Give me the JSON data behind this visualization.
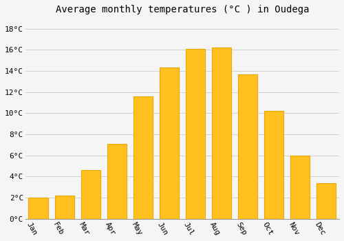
{
  "title": "Average monthly temperatures (°C ) in Oudega",
  "months": [
    "Jan",
    "Feb",
    "Mar",
    "Apr",
    "May",
    "Jun",
    "Jul",
    "Aug",
    "Sep",
    "Oct",
    "Nov",
    "Dec"
  ],
  "temperatures": [
    2.0,
    2.2,
    4.6,
    7.1,
    11.6,
    14.3,
    16.1,
    16.2,
    13.7,
    10.2,
    6.0,
    3.4
  ],
  "bar_color_main": "#FFC020",
  "bar_color_edge": "#E8A800",
  "background_color": "#F5F5F5",
  "grid_color": "#CCCCCC",
  "ytick_labels": [
    "0°C",
    "2°C",
    "4°C",
    "6°C",
    "8°C",
    "10°C",
    "12°C",
    "14°C",
    "16°C",
    "18°C"
  ],
  "ytick_values": [
    0,
    2,
    4,
    6,
    8,
    10,
    12,
    14,
    16,
    18
  ],
  "ylim": [
    0,
    19.0
  ],
  "title_fontsize": 10,
  "tick_fontsize": 8,
  "bar_width": 0.75
}
